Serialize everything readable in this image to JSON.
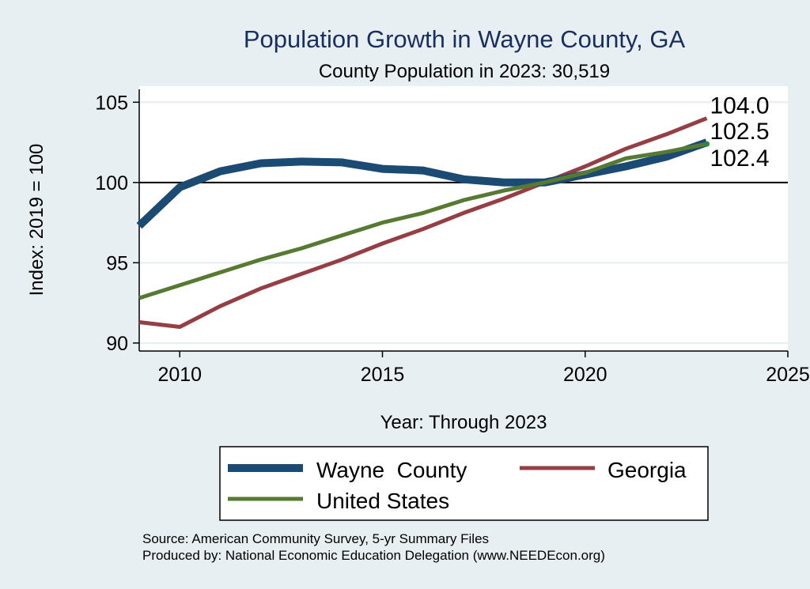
{
  "chart_data": {
    "type": "line",
    "title": "Population Growth in Wayne County, GA",
    "subtitle": "County Population in 2023: 30,519",
    "xlabel": "Year: Through 2023",
    "ylabel": "Index: 2019 = 100",
    "xlim": [
      2009,
      2025
    ],
    "ylim": [
      89.5,
      106
    ],
    "xticks": [
      2010,
      2015,
      2020,
      2025
    ],
    "yticks": [
      90,
      95,
      100,
      105
    ],
    "reference_line": 100,
    "grid": true,
    "legend_position": "bottom",
    "x": [
      2009,
      2010,
      2011,
      2012,
      2013,
      2014,
      2015,
      2016,
      2017,
      2018,
      2019,
      2020,
      2021,
      2022,
      2023
    ],
    "series": [
      {
        "name": "Wayne  County",
        "color": "#1b4a72",
        "values": [
          97.3,
          99.7,
          100.7,
          101.2,
          101.3,
          101.25,
          100.85,
          100.75,
          100.2,
          100.0,
          100.0,
          100.5,
          101.0,
          101.6,
          102.5
        ],
        "end_label": "102.5"
      },
      {
        "name": "Georgia",
        "color": "#953f45",
        "values": [
          91.3,
          91.0,
          92.3,
          93.4,
          94.3,
          95.2,
          96.2,
          97.1,
          98.1,
          99.0,
          100.0,
          101.0,
          102.1,
          103.0,
          104.0
        ],
        "end_label": "104.0"
      },
      {
        "name": "United States",
        "color": "#577a32",
        "values": [
          92.8,
          93.6,
          94.4,
          95.2,
          95.9,
          96.7,
          97.5,
          98.1,
          98.9,
          99.5,
          100.0,
          100.6,
          101.5,
          101.9,
          102.4
        ],
        "end_label": "102.4"
      }
    ]
  },
  "source_lines": [
    "Source: American Community Survey, 5-yr Summary Files",
    "Produced by: National Economic Education Delegation (www.NEEDEcon.org)"
  ]
}
